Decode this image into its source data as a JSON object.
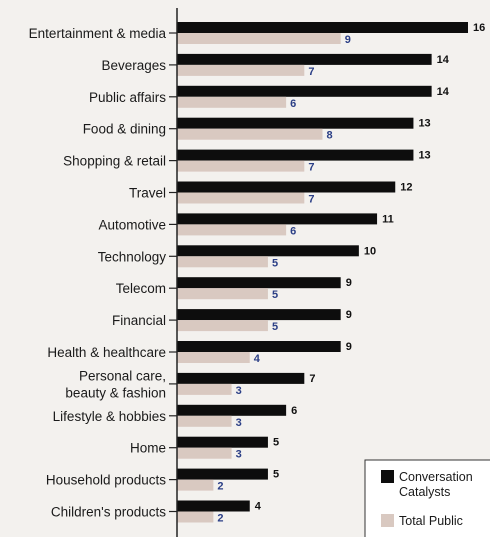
{
  "chart_data": {
    "type": "bar",
    "orientation": "horizontal",
    "categories": [
      "Entertainment & media",
      "Beverages",
      "Public affairs",
      "Food & dining",
      "Shopping & retail",
      "Travel",
      "Automotive",
      "Technology",
      "Telecom",
      "Financial",
      "Health & healthcare",
      "Personal care, beauty & fashion",
      "Lifestyle & hobbies",
      "Home",
      "Household products",
      "Children's products"
    ],
    "category_lines": [
      [
        "Entertainment & media"
      ],
      [
        "Beverages"
      ],
      [
        "Public affairs"
      ],
      [
        "Food & dining"
      ],
      [
        "Shopping & retail"
      ],
      [
        "Travel"
      ],
      [
        "Automotive"
      ],
      [
        "Technology"
      ],
      [
        "Telecom"
      ],
      [
        "Financial"
      ],
      [
        "Health & healthcare"
      ],
      [
        "Personal care,",
        "beauty & fashion"
      ],
      [
        "Lifestyle & hobbies"
      ],
      [
        "Home"
      ],
      [
        "Household products"
      ],
      [
        "Children's products"
      ]
    ],
    "series": [
      {
        "name": "Conversation Catalysts",
        "name_lines": [
          "Conversation",
          "Catalysts"
        ],
        "color": "#0d0d0d",
        "values": [
          16,
          14,
          14,
          13,
          13,
          12,
          11,
          10,
          9,
          9,
          9,
          7,
          6,
          5,
          5,
          4
        ]
      },
      {
        "name": "Total Public",
        "name_lines": [
          "Total Public"
        ],
        "color": "#d9c9c1",
        "values": [
          9,
          7,
          6,
          8,
          7,
          7,
          6,
          5,
          5,
          5,
          4,
          3,
          3,
          3,
          2,
          2
        ]
      }
    ],
    "xlim": [
      0,
      16
    ],
    "legend": "bottom-right",
    "grid": false
  }
}
